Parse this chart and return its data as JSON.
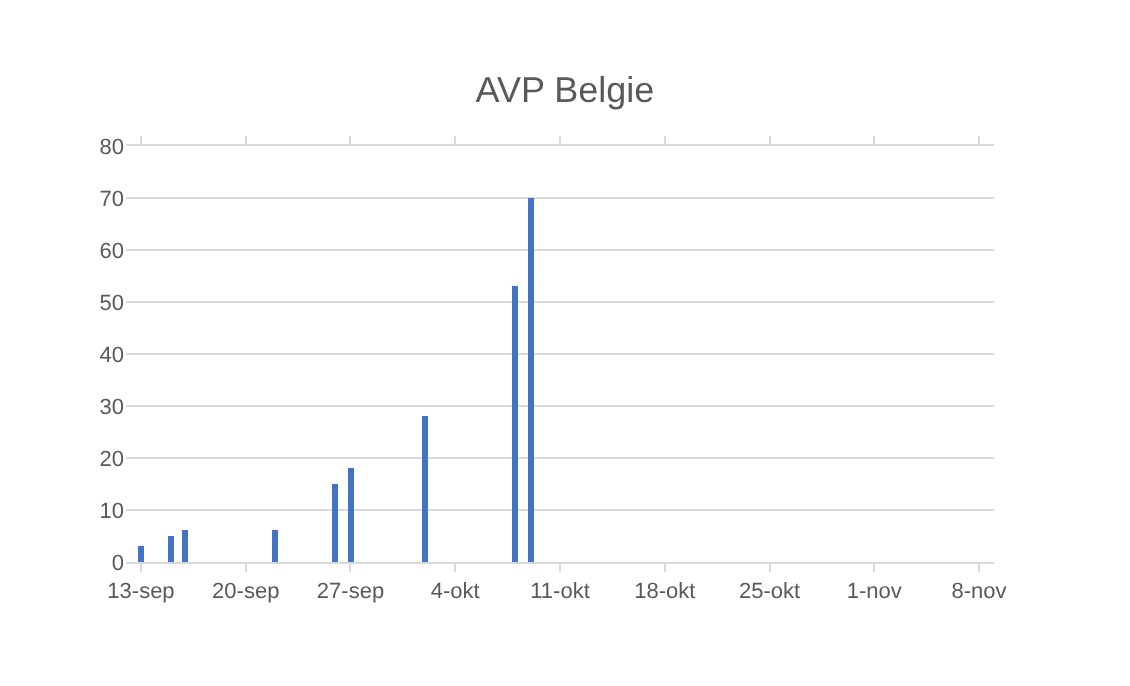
{
  "chart_data": {
    "type": "bar",
    "title": "AVP Belgie",
    "x": [
      "--09-13",
      "--09-15",
      "--09-16",
      "--09-22",
      "--09-26",
      "--09-27",
      "--10-02",
      "--10-08",
      "--10-09"
    ],
    "values": [
      3,
      5,
      6,
      6,
      15,
      18,
      28,
      53,
      70
    ],
    "color": "#4472c4",
    "xlim": [
      "--09-12",
      "--11-09"
    ],
    "xticks": [
      {
        "value": "--09-13",
        "label": "13-sep"
      },
      {
        "value": "--09-20",
        "label": "20-sep"
      },
      {
        "value": "--09-27",
        "label": "27-sep"
      },
      {
        "value": "--10-04",
        "label": "4-okt"
      },
      {
        "value": "--10-11",
        "label": "11-okt"
      },
      {
        "value": "--10-18",
        "label": "18-okt"
      },
      {
        "value": "--10-25",
        "label": "25-okt"
      },
      {
        "value": "--11-01",
        "label": "1-nov"
      },
      {
        "value": "--11-08",
        "label": "8-nov"
      }
    ],
    "ylim": [
      0,
      80
    ],
    "yticks": [
      0,
      10,
      20,
      30,
      40,
      50,
      60,
      70,
      80
    ],
    "grid": "y"
  }
}
